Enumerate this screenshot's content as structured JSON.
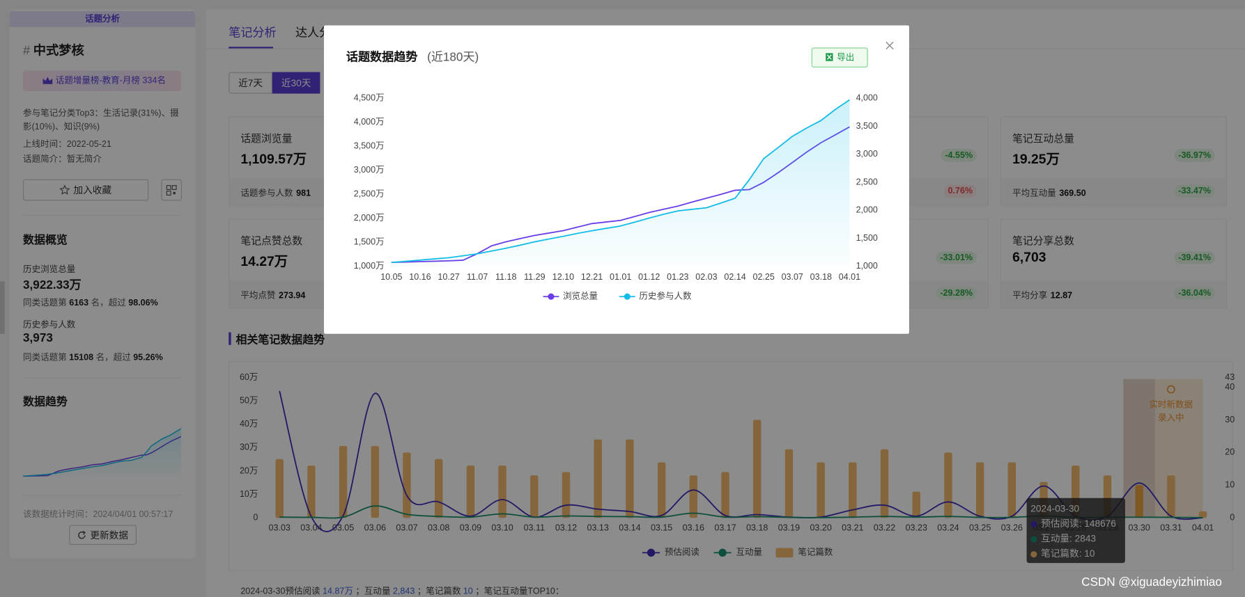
{
  "sidebar": {
    "badge": "话题分析",
    "hash": "#",
    "topic": "中式梦核",
    "rank": "话题增量榜-教育-月榜 334名",
    "categories": "参与笔记分类Top3：生活记录(31%)、摄影(10%)、知识(9%)",
    "online": "上线时间：2022-05-21",
    "intro": "话题简介：暂无简介",
    "favorite": "加入收藏",
    "overview": "数据概览",
    "views_label": "历史浏览总量",
    "views": "3,922.33万",
    "views_rank": {
      "prefix": "同类话题第",
      "rank": "6163",
      "mid": "名，超过",
      "pct": "98.06%"
    },
    "people_label": "历史参与人数",
    "people": "3,973",
    "people_rank": {
      "prefix": "同类话题第",
      "rank": "15108",
      "mid": "名，超过",
      "pct": "95.26%"
    },
    "trend": "数据趋势",
    "stat_time": "该数据统计时间：2024/04/01 00:57:17",
    "update": "更新数据"
  },
  "tabs": [
    "笔记分析",
    "达人分析"
  ],
  "ranges": [
    "近7天",
    "近30天"
  ],
  "cards": [
    [
      {
        "title": "话题浏览量",
        "value": "1,109.57万",
        "sub_label": "话题参与人数",
        "sub_value": "981"
      },
      {
        "pct": "-4.55%",
        "sub_pct": "0.76%"
      },
      {
        "title": "笔记互动总量",
        "value": "19.25万",
        "pct": "-36.97%",
        "sub_label": "平均互动量",
        "sub_value": "369.50",
        "sub_pct": "-33.47%"
      }
    ],
    [
      {
        "title": "笔记点赞总数",
        "value": "14.27万",
        "sub_label": "平均点赞",
        "sub_value": "273.94"
      },
      {
        "pct": "-33.01%",
        "sub_pct": "-29.28%"
      },
      {
        "title": "笔记分享总数",
        "value": "6,703",
        "pct": "-39.41%",
        "sub_label": "平均分享",
        "sub_value": "12.87",
        "sub_pct": "-36.04%"
      }
    ]
  ],
  "section_title": "相关笔记数据趋势",
  "summary": [
    {
      "text": "2024-03-30预估阅读",
      "highlight": false
    },
    {
      "text": "14.87万",
      "highlight": true
    },
    {
      "text": "；互动量",
      "highlight": false
    },
    {
      "text": "2,843",
      "highlight": true
    },
    {
      "text": "；笔记篇数",
      "highlight": false
    },
    {
      "text": "10",
      "highlight": true
    },
    {
      "text": "；笔记互动量TOP10：",
      "highlight": false
    }
  ],
  "export": "导出",
  "watermark": "CSDN @xiguadeyizhimiao",
  "chart_data": [
    {
      "type": "line",
      "title": "话题数据趋势",
      "subtitle": "(近180天)",
      "categories": [
        "10.05",
        null,
        "10.16",
        null,
        "10.27",
        null,
        "11.07",
        null,
        "11.18",
        null,
        "11.29",
        null,
        "12.10",
        null,
        "12.21",
        null,
        "01.01",
        null,
        "01.12",
        null,
        "01.23",
        null,
        "02.03",
        null,
        "02.14",
        null,
        "02.25",
        null,
        "03.07",
        null,
        "03.18",
        null,
        "04.01"
      ],
      "series": [
        {
          "name": "浏览总量",
          "color": "#6a3de8",
          "values": [
            1085,
            1092,
            1100,
            1108,
            1117,
            1130,
            1266,
            1430,
            1513,
            1580,
            1645,
            1695,
            1745,
            1820,
            1893,
            1925,
            1959,
            2040,
            2124,
            2190,
            2256,
            2340,
            2421,
            2500,
            2586,
            2600,
            2751,
            2950,
            3163,
            3380,
            3576,
            3740,
            3906
          ]
        },
        {
          "name": "历史参与人数",
          "color": "#13bde8",
          "axis": "y2",
          "area": true,
          "values": [
            1071,
            1092,
            1113,
            1135,
            1156,
            1190,
            1226,
            1275,
            1325,
            1380,
            1439,
            1490,
            1538,
            1590,
            1637,
            1680,
            1722,
            1790,
            1863,
            1930,
            1991,
            2020,
            2047,
            2130,
            2217,
            2550,
            2924,
            3120,
            3321,
            3470,
            3604,
            3800,
            3973
          ]
        }
      ],
      "ylim": [
        1000,
        4500
      ],
      "yticks": [
        {
          "value": 1000,
          "label": "1,000万"
        },
        {
          "value": 1500,
          "label": "1,500万"
        },
        {
          "value": 2000,
          "label": "2,000万"
        },
        {
          "value": 2500,
          "label": "2,500万"
        },
        {
          "value": 3000,
          "label": "3,000万"
        },
        {
          "value": 3500,
          "label": "3,500万"
        },
        {
          "value": 4000,
          "label": "4,000万"
        },
        {
          "value": 4500,
          "label": "4,500万"
        }
      ],
      "y2lim": [
        1000,
        4000
      ],
      "y2ticks": [
        {
          "value": 1000,
          "label": "1,000"
        },
        {
          "value": 1500,
          "label": "1,500"
        },
        {
          "value": 2000,
          "label": "2,000"
        },
        {
          "value": 2500,
          "label": "2,500"
        },
        {
          "value": 3000,
          "label": "3,000"
        },
        {
          "value": 3500,
          "label": "3,500"
        },
        {
          "value": 4000,
          "label": "4,000"
        }
      ],
      "grid": false,
      "legend": "bottom"
    },
    {
      "type": "combo",
      "categories": [
        "03.03",
        "03.04",
        "03.05",
        "03.06",
        "03.07",
        "03.08",
        "03.09",
        "03.10",
        "03.11",
        "03.12",
        "03.13",
        "03.14",
        "03.15",
        "03.16",
        "03.17",
        "03.18",
        "03.19",
        "03.20",
        "03.21",
        "03.22",
        "03.23",
        "03.24",
        "03.25",
        "03.26",
        "03.27",
        "03.28",
        "03.29",
        "03.30",
        "03.31",
        "04.01"
      ],
      "series": [
        {
          "name": "预估阅读",
          "color": "#3f2fb8",
          "values": [
            542000,
            5000,
            10000,
            532000,
            95000,
            68000,
            7000,
            78000,
            3000,
            54000,
            37000,
            27000,
            10000,
            119000,
            10000,
            14000,
            3000,
            3000,
            34000,
            54000,
            7000,
            68000,
            7000,
            7000,
            136000,
            7000,
            7000,
            148676,
            7000,
            0
          ]
        },
        {
          "name": "互动量",
          "color": "#1a8f70",
          "values": [
            3000,
            2000,
            3000,
            51000,
            15000,
            6000,
            3000,
            17000,
            3000,
            8000,
            6000,
            5000,
            3000,
            20000,
            3000,
            5000,
            2000,
            1000,
            3000,
            6000,
            3000,
            6000,
            2000,
            2000,
            8000,
            2000,
            2000,
            2843,
            2000,
            1000
          ]
        },
        {
          "name": "笔记篇数",
          "color": "#f0b96e",
          "type": "bar",
          "axis": "y2",
          "values": [
            18,
            16,
            22,
            22,
            20,
            18,
            16,
            16,
            13,
            14,
            24,
            24,
            17,
            13,
            14,
            30,
            21,
            17,
            17,
            21,
            8,
            20,
            17,
            17,
            11,
            16,
            13,
            10,
            13,
            2
          ]
        }
      ],
      "ylim": [
        0,
        600000
      ],
      "yticks": [
        0,
        {
          "value": 100000,
          "label": "10万"
        },
        {
          "value": 200000,
          "label": "20万"
        },
        {
          "value": 300000,
          "label": "30万"
        },
        {
          "value": 400000,
          "label": "40万"
        },
        {
          "value": 500000,
          "label": "50万"
        },
        {
          "value": 600000,
          "label": "60万"
        }
      ],
      "y2lim": [
        0,
        43
      ],
      "y2ticks": [
        0,
        10,
        20,
        30,
        40,
        43
      ],
      "grid": false,
      "legend": "bottom",
      "annotation": "实时新数据录入中",
      "tooltip": {
        "title": "2024-03-30",
        "rows": [
          "预估阅读: 148676",
          "互动量: 2843",
          "笔记篇数: 10"
        ]
      }
    }
  ]
}
